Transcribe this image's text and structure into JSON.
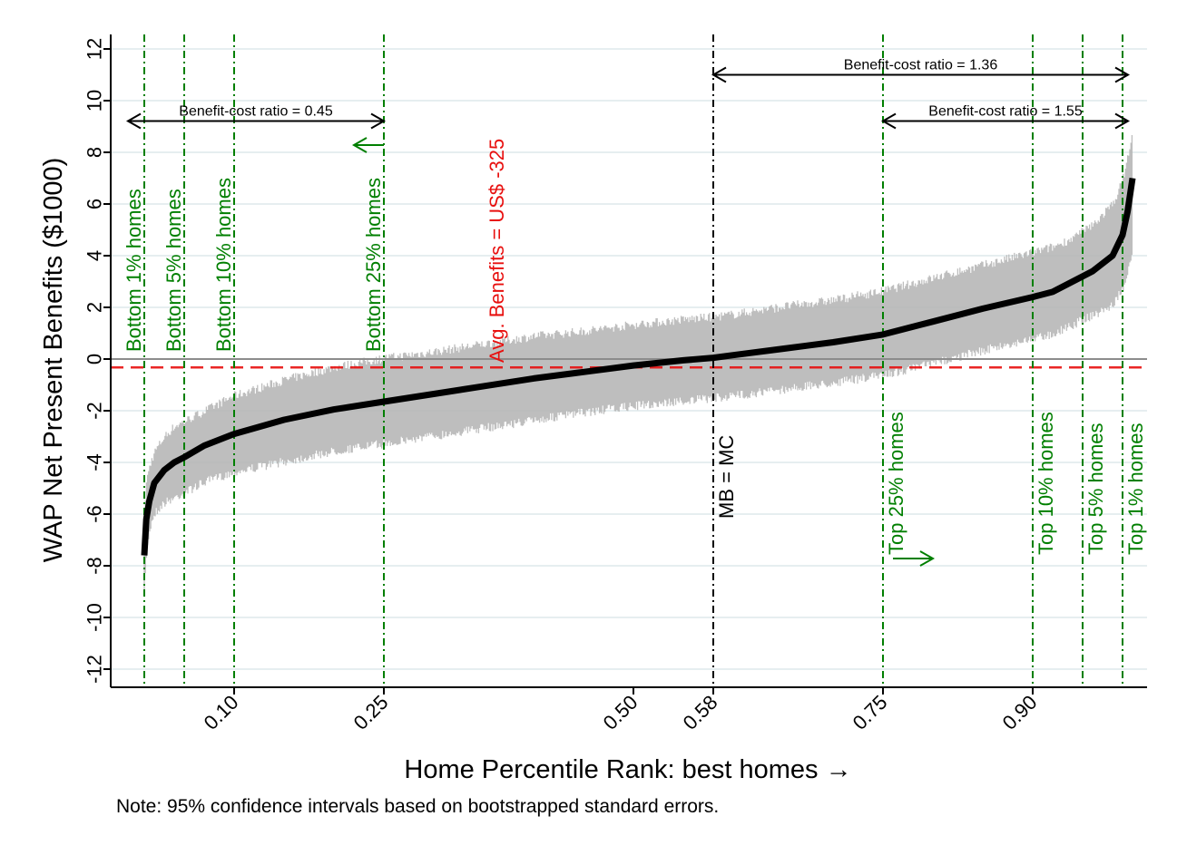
{
  "chart_data": {
    "type": "line",
    "xlabel": "Home Percentile Rank: best homes →",
    "ylabel": "WAP Net Present Benefits ($1000)",
    "xlim": [
      0.0,
      1.0
    ],
    "ylim": [
      -13,
      13
    ],
    "x_ticks": [
      {
        "value": 0.1,
        "label": "0.10"
      },
      {
        "value": 0.25,
        "label": "0.25"
      },
      {
        "value": 0.5,
        "label": "0.50"
      },
      {
        "value": 0.58,
        "label": "0.58"
      },
      {
        "value": 0.75,
        "label": "0.75"
      },
      {
        "value": 0.9,
        "label": "0.90"
      }
    ],
    "y_ticks": [
      12,
      10,
      8,
      6,
      4,
      2,
      0,
      -2,
      -4,
      -6,
      -8,
      -10,
      -12
    ],
    "y_tick_labels": [
      "12",
      "10",
      "8",
      "6",
      "4",
      "2",
      "0",
      "-2",
      "-4",
      "-6",
      "-8",
      "-10",
      "-12"
    ],
    "grid": "horizontal",
    "zero_line": 0,
    "average_line": {
      "value": -0.325,
      "label": "Avg. Benefits = US$ -325",
      "color": "#e8100f"
    },
    "series": [
      {
        "x": [
          0.01,
          0.012,
          0.015,
          0.02,
          0.03,
          0.04,
          0.05,
          0.07,
          0.1,
          0.15,
          0.2,
          0.25,
          0.3,
          0.35,
          0.4,
          0.45,
          0.5,
          0.55,
          0.58,
          0.6,
          0.65,
          0.7,
          0.75,
          0.8,
          0.85,
          0.9,
          0.92,
          0.94,
          0.96,
          0.98,
          0.99,
          0.995,
          1.0
        ],
        "y": [
          -7.6,
          -6.2,
          -5.5,
          -4.8,
          -4.3,
          -4.0,
          -3.8,
          -3.35,
          -2.9,
          -2.35,
          -1.95,
          -1.65,
          -1.35,
          -1.05,
          -0.75,
          -0.5,
          -0.25,
          -0.05,
          0.05,
          0.15,
          0.4,
          0.65,
          0.95,
          1.45,
          1.95,
          2.4,
          2.6,
          3.0,
          3.4,
          4.0,
          4.8,
          5.7,
          7.0
        ],
        "ci_lower": [
          -9.0,
          -7.5,
          -6.5,
          -5.8,
          -5.4,
          -5.2,
          -5.0,
          -4.6,
          -4.2,
          -3.8,
          -3.4,
          -3.1,
          -2.8,
          -2.5,
          -2.2,
          -1.9,
          -1.65,
          -1.45,
          -1.35,
          -1.25,
          -1.0,
          -0.75,
          -0.45,
          0.0,
          0.5,
          0.95,
          1.15,
          1.5,
          1.85,
          2.25,
          2.85,
          3.4,
          4.2
        ],
        "ci_upper": [
          -6.2,
          -5.0,
          -4.4,
          -3.8,
          -3.2,
          -2.8,
          -2.6,
          -2.2,
          -1.6,
          -1.0,
          -0.5,
          -0.15,
          0.1,
          0.4,
          0.7,
          0.9,
          1.15,
          1.35,
          1.45,
          1.55,
          1.85,
          2.1,
          2.45,
          2.95,
          3.45,
          3.95,
          4.15,
          4.5,
          5.0,
          5.8,
          6.7,
          7.6,
          8.5
        ],
        "color": "#000000",
        "ci_color": "#b3b3b3"
      }
    ],
    "vlines": [
      {
        "x": 0.01,
        "label": "Bottom 1% homes",
        "color": "#007f00",
        "label_side": "top"
      },
      {
        "x": 0.05,
        "label": "Bottom 5% homes",
        "color": "#007f00",
        "label_side": "top"
      },
      {
        "x": 0.1,
        "label": "Bottom 10% homes",
        "color": "#007f00",
        "label_side": "top"
      },
      {
        "x": 0.25,
        "label": "Bottom 25% homes",
        "color": "#007f00",
        "label_side": "top"
      },
      {
        "x": 0.58,
        "label": "MB = MC",
        "color": "#000000",
        "label_side": "bottom"
      },
      {
        "x": 0.75,
        "label": "Top 25% homes",
        "color": "#007f00",
        "label_side": "bottom"
      },
      {
        "x": 0.9,
        "label": "Top 10% homes",
        "color": "#007f00",
        "label_side": "bottom"
      },
      {
        "x": 0.95,
        "label": "Top 5% homes",
        "color": "#007f00",
        "label_side": "bottom"
      },
      {
        "x": 0.99,
        "label": "Top 1% homes",
        "color": "#007f00",
        "label_side": "bottom"
      }
    ],
    "annotations": [
      {
        "text": "Benefit-cost ratio = 0.45",
        "x_from": 0.0,
        "x_to": 0.25,
        "y": 9
      },
      {
        "text": "Benefit-cost ratio = 1.36",
        "x_from": 0.58,
        "x_to": 1.0,
        "y": 11
      },
      {
        "text": "Benefit-cost ratio = 1.55",
        "x_from": 0.75,
        "x_to": 1.0,
        "y": 9
      }
    ],
    "green_arrows": [
      {
        "x_from": 0.25,
        "x_to": 0.22,
        "y": 8,
        "color": "#007f00"
      },
      {
        "x_from": 0.76,
        "x_to": 0.8,
        "y": -8,
        "color": "#007f00"
      }
    ]
  },
  "note": "Note: 95% confidence intervals based on bootstrapped standard errors."
}
